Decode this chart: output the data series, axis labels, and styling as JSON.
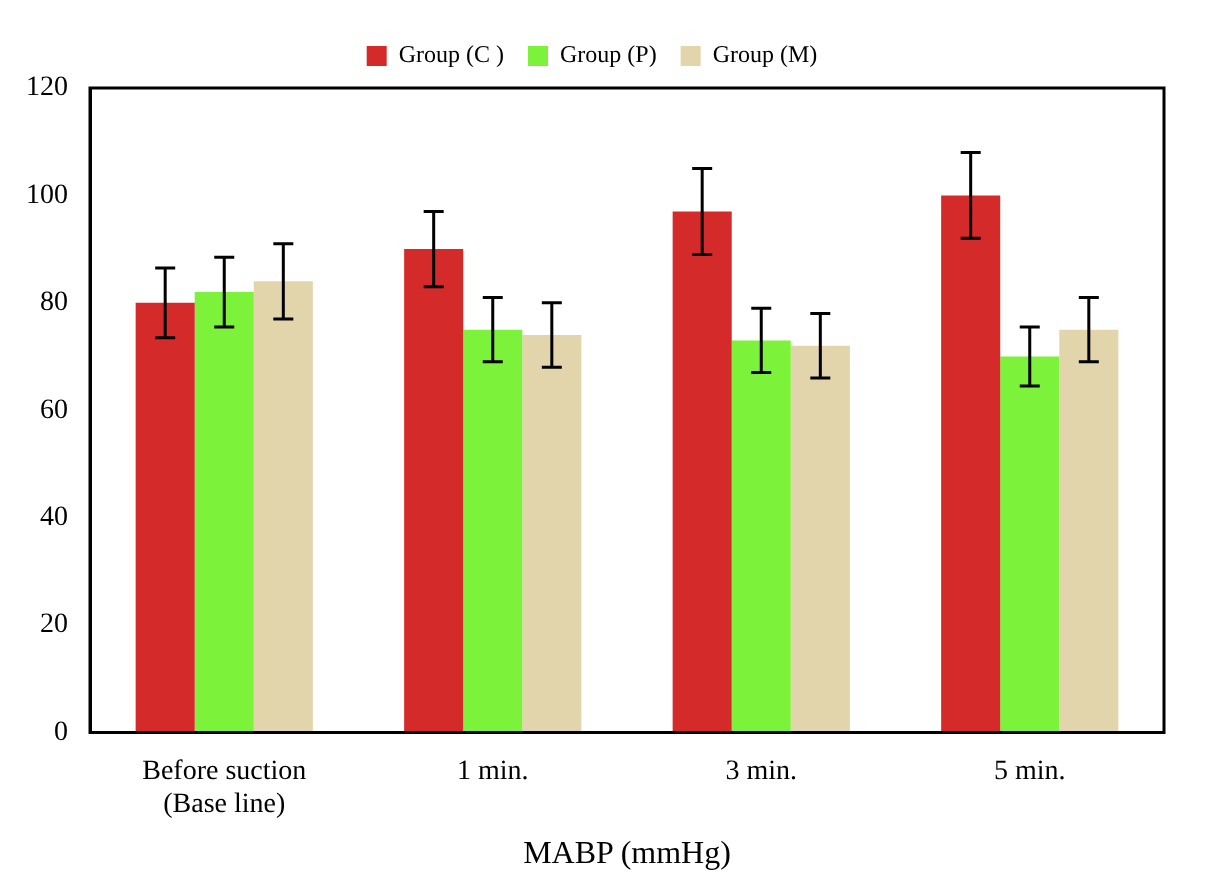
{
  "chart_data": {
    "type": "bar",
    "xlabel": "MABP (mmHg)",
    "categories": [
      "Before suction\n(Base line)",
      "1 min.",
      "3 min.",
      "5 min."
    ],
    "series": [
      {
        "name": "Group (C )",
        "color": "#d42a2a",
        "values": [
          80,
          90,
          97,
          100
        ],
        "errors": [
          6.5,
          7,
          8,
          8
        ]
      },
      {
        "name": "Group (P)",
        "color": "#7cf23a",
        "values": [
          82,
          75,
          73,
          70
        ],
        "errors": [
          6.5,
          6,
          6,
          5.5
        ]
      },
      {
        "name": "Group (M)",
        "color": "#e2d5ac",
        "values": [
          84,
          74,
          72,
          75
        ],
        "errors": [
          7,
          6,
          6,
          6
        ]
      }
    ],
    "ylim": [
      0,
      120
    ],
    "yticks": [
      0,
      20,
      40,
      60,
      80,
      100,
      120
    ],
    "grid": false,
    "legend": "top"
  }
}
